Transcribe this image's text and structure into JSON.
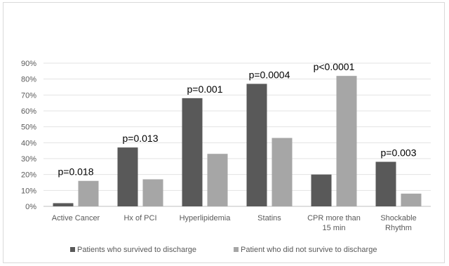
{
  "chart_data": {
    "type": "bar",
    "title": "",
    "xlabel": "",
    "ylabel": "",
    "ylim": [
      0,
      90
    ],
    "yticks": [
      "0%",
      "10%",
      "20%",
      "30%",
      "40%",
      "50%",
      "60%",
      "70%",
      "80%",
      "90%"
    ],
    "categories": [
      [
        "Active Cancer"
      ],
      [
        "Hx of PCI"
      ],
      [
        "Hyperlipidemia"
      ],
      [
        "Statins"
      ],
      [
        "CPR more than",
        "15 min"
      ],
      [
        "Shockable",
        "Rhythm"
      ]
    ],
    "series": [
      {
        "name": "Patients who survived to discharge",
        "color": "#595959",
        "values": [
          2,
          37,
          68,
          77,
          20,
          28
        ]
      },
      {
        "name": "Patient who did not survive to discharge",
        "color": "#a6a6a6",
        "values": [
          16,
          17,
          33,
          43,
          82,
          8
        ]
      }
    ],
    "annotations": [
      "p=0.018",
      "p=0.013",
      "p=0.001",
      "p=0.0004",
      "p<0.0001",
      "p=0.003"
    ],
    "grid": true,
    "legend_position": "bottom"
  }
}
